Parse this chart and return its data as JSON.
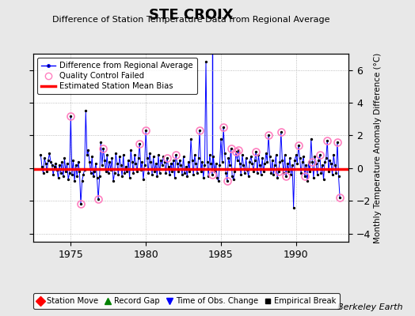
{
  "title": "STE CROIX",
  "subtitle": "Difference of Station Temperature Data from Regional Average",
  "ylabel": "Monthly Temperature Anomaly Difference (°C)",
  "background_color": "#e8e8e8",
  "plot_bg_color": "#ffffff",
  "xlim": [
    1972.5,
    1993.5
  ],
  "ylim": [
    -4.5,
    7.0
  ],
  "yticks": [
    -4,
    -2,
    0,
    2,
    4,
    6
  ],
  "xticks": [
    1975,
    1980,
    1985,
    1990
  ],
  "bias_value": -0.05,
  "time_of_obs_change_x": 1984.42,
  "berkeley_earth_text": "Berkeley Earth",
  "legend1_labels": [
    "Difference from Regional Average",
    "Quality Control Failed",
    "Estimated Station Mean Bias"
  ],
  "legend2_labels": [
    "Station Move",
    "Record Gap",
    "Time of Obs. Change",
    "Empirical Break"
  ],
  "monthly_data": [
    [
      1973.0,
      0.8
    ],
    [
      1973.083,
      0.1
    ],
    [
      1973.167,
      -0.3
    ],
    [
      1973.25,
      0.6
    ],
    [
      1973.333,
      0.3
    ],
    [
      1973.417,
      -0.2
    ],
    [
      1973.5,
      0.5
    ],
    [
      1973.583,
      0.9
    ],
    [
      1973.667,
      0.4
    ],
    [
      1973.75,
      0.2
    ],
    [
      1973.833,
      -0.4
    ],
    [
      1973.917,
      0.1
    ],
    [
      1974.0,
      0.3
    ],
    [
      1974.083,
      -0.1
    ],
    [
      1974.167,
      -0.6
    ],
    [
      1974.25,
      0.2
    ],
    [
      1974.333,
      -0.3
    ],
    [
      1974.417,
      0.4
    ],
    [
      1974.5,
      -0.5
    ],
    [
      1974.583,
      0.6
    ],
    [
      1974.667,
      -0.2
    ],
    [
      1974.75,
      0.3
    ],
    [
      1974.833,
      -0.7
    ],
    [
      1974.917,
      -0.3
    ],
    [
      1975.0,
      3.2
    ],
    [
      1975.083,
      -0.4
    ],
    [
      1975.167,
      0.5
    ],
    [
      1975.25,
      -0.8
    ],
    [
      1975.333,
      0.2
    ],
    [
      1975.417,
      -0.5
    ],
    [
      1975.5,
      0.4
    ],
    [
      1975.583,
      -0.2
    ],
    [
      1975.667,
      -2.2
    ],
    [
      1975.75,
      -0.8
    ],
    [
      1975.833,
      -0.4
    ],
    [
      1975.917,
      -0.1
    ],
    [
      1976.0,
      3.5
    ],
    [
      1976.083,
      0.8
    ],
    [
      1976.167,
      1.1
    ],
    [
      1976.25,
      0.4
    ],
    [
      1976.333,
      -0.3
    ],
    [
      1976.417,
      0.7
    ],
    [
      1976.5,
      -0.5
    ],
    [
      1976.583,
      -0.2
    ],
    [
      1976.667,
      0.3
    ],
    [
      1976.75,
      -0.6
    ],
    [
      1976.833,
      -1.9
    ],
    [
      1976.917,
      -0.5
    ],
    [
      1977.0,
      1.6
    ],
    [
      1977.083,
      0.2
    ],
    [
      1977.167,
      1.2
    ],
    [
      1977.25,
      0.5
    ],
    [
      1977.333,
      -0.2
    ],
    [
      1977.417,
      0.8
    ],
    [
      1977.5,
      -0.3
    ],
    [
      1977.583,
      0.4
    ],
    [
      1977.667,
      -0.1
    ],
    [
      1977.75,
      0.6
    ],
    [
      1977.833,
      -0.8
    ],
    [
      1977.917,
      -0.3
    ],
    [
      1978.0,
      0.9
    ],
    [
      1978.083,
      0.3
    ],
    [
      1978.167,
      -0.4
    ],
    [
      1978.25,
      0.7
    ],
    [
      1978.333,
      0.2
    ],
    [
      1978.417,
      -0.5
    ],
    [
      1978.5,
      0.8
    ],
    [
      1978.583,
      -0.3
    ],
    [
      1978.667,
      0.1
    ],
    [
      1978.75,
      -0.2
    ],
    [
      1978.833,
      0.5
    ],
    [
      1978.917,
      -0.6
    ],
    [
      1979.0,
      1.1
    ],
    [
      1979.083,
      0.4
    ],
    [
      1979.167,
      -0.3
    ],
    [
      1979.25,
      0.8
    ],
    [
      1979.333,
      0.3
    ],
    [
      1979.417,
      -0.2
    ],
    [
      1979.5,
      0.6
    ],
    [
      1979.583,
      1.5
    ],
    [
      1979.667,
      -0.1
    ],
    [
      1979.75,
      0.4
    ],
    [
      1979.833,
      -0.7
    ],
    [
      1979.917,
      0.2
    ],
    [
      1980.0,
      2.3
    ],
    [
      1980.083,
      0.6
    ],
    [
      1980.167,
      -0.3
    ],
    [
      1980.25,
      0.9
    ],
    [
      1980.333,
      0.4
    ],
    [
      1980.417,
      -0.4
    ],
    [
      1980.5,
      0.7
    ],
    [
      1980.583,
      -0.2
    ],
    [
      1980.667,
      0.3
    ],
    [
      1980.75,
      -0.5
    ],
    [
      1980.833,
      0.8
    ],
    [
      1980.917,
      -0.3
    ],
    [
      1981.0,
      0.5
    ],
    [
      1981.083,
      0.2
    ],
    [
      1981.167,
      0.7
    ],
    [
      1981.25,
      0.4
    ],
    [
      1981.333,
      -0.3
    ],
    [
      1981.417,
      0.6
    ],
    [
      1981.5,
      0.1
    ],
    [
      1981.583,
      -0.4
    ],
    [
      1981.667,
      0.3
    ],
    [
      1981.75,
      -0.2
    ],
    [
      1981.833,
      0.5
    ],
    [
      1981.917,
      -0.6
    ],
    [
      1982.0,
      0.8
    ],
    [
      1982.083,
      0.3
    ],
    [
      1982.167,
      -0.2
    ],
    [
      1982.25,
      0.5
    ],
    [
      1982.333,
      0.2
    ],
    [
      1982.417,
      -0.4
    ],
    [
      1982.5,
      0.7
    ],
    [
      1982.583,
      -0.3
    ],
    [
      1982.667,
      0.1
    ],
    [
      1982.75,
      -0.5
    ],
    [
      1982.833,
      0.4
    ],
    [
      1982.917,
      -0.2
    ],
    [
      1983.0,
      1.8
    ],
    [
      1983.083,
      0.5
    ],
    [
      1983.167,
      -0.4
    ],
    [
      1983.25,
      0.8
    ],
    [
      1983.333,
      0.3
    ],
    [
      1983.417,
      -0.3
    ],
    [
      1983.5,
      0.6
    ],
    [
      1983.583,
      2.3
    ],
    [
      1983.667,
      -0.2
    ],
    [
      1983.75,
      0.4
    ],
    [
      1983.833,
      -0.6
    ],
    [
      1983.917,
      0.2
    ],
    [
      1984.0,
      6.5
    ],
    [
      1984.083,
      0.4
    ],
    [
      1984.167,
      -0.5
    ],
    [
      1984.25,
      0.8
    ],
    [
      1984.333,
      0.3
    ],
    [
      1984.417,
      -0.4
    ],
    [
      1984.5,
      0.7
    ],
    [
      1984.583,
      -0.2
    ],
    [
      1984.667,
      0.3
    ],
    [
      1984.75,
      -0.6
    ],
    [
      1984.833,
      -0.8
    ],
    [
      1984.917,
      0.2
    ],
    [
      1985.0,
      1.8
    ],
    [
      1985.083,
      0.4
    ],
    [
      1985.167,
      2.5
    ],
    [
      1985.25,
      0.9
    ],
    [
      1985.333,
      -0.3
    ],
    [
      1985.417,
      -0.8
    ],
    [
      1985.5,
      0.6
    ],
    [
      1985.583,
      0.2
    ],
    [
      1985.667,
      1.2
    ],
    [
      1985.75,
      -0.5
    ],
    [
      1985.833,
      -0.7
    ],
    [
      1985.917,
      -0.2
    ],
    [
      1986.0,
      1.0
    ],
    [
      1986.083,
      0.5
    ],
    [
      1986.167,
      1.1
    ],
    [
      1986.25,
      0.3
    ],
    [
      1986.333,
      -0.4
    ],
    [
      1986.417,
      0.8
    ],
    [
      1986.5,
      0.2
    ],
    [
      1986.583,
      -0.3
    ],
    [
      1986.667,
      0.6
    ],
    [
      1986.75,
      -0.1
    ],
    [
      1986.833,
      -0.5
    ],
    [
      1986.917,
      0.4
    ],
    [
      1987.0,
      0.7
    ],
    [
      1987.083,
      0.3
    ],
    [
      1987.167,
      -0.2
    ],
    [
      1987.25,
      0.5
    ],
    [
      1987.333,
      1.0
    ],
    [
      1987.417,
      -0.3
    ],
    [
      1987.5,
      0.8
    ],
    [
      1987.583,
      0.2
    ],
    [
      1987.667,
      -0.4
    ],
    [
      1987.75,
      0.6
    ],
    [
      1987.833,
      -0.2
    ],
    [
      1987.917,
      0.3
    ],
    [
      1988.0,
      0.9
    ],
    [
      1988.083,
      0.4
    ],
    [
      1988.167,
      2.0
    ],
    [
      1988.25,
      0.7
    ],
    [
      1988.333,
      -0.3
    ],
    [
      1988.417,
      0.5
    ],
    [
      1988.5,
      -0.4
    ],
    [
      1988.583,
      0.2
    ],
    [
      1988.667,
      0.8
    ],
    [
      1988.75,
      -0.6
    ],
    [
      1988.833,
      -0.2
    ],
    [
      1988.917,
      0.4
    ],
    [
      1989.0,
      2.2
    ],
    [
      1989.083,
      0.5
    ],
    [
      1989.167,
      -0.3
    ],
    [
      1989.25,
      0.8
    ],
    [
      1989.333,
      -0.5
    ],
    [
      1989.417,
      0.3
    ],
    [
      1989.5,
      -0.2
    ],
    [
      1989.583,
      0.6
    ],
    [
      1989.667,
      -0.4
    ],
    [
      1989.75,
      0.2
    ],
    [
      1989.833,
      -2.4
    ],
    [
      1989.917,
      0.5
    ],
    [
      1990.0,
      0.8
    ],
    [
      1990.083,
      0.3
    ],
    [
      1990.167,
      1.4
    ],
    [
      1990.25,
      0.6
    ],
    [
      1990.333,
      -0.3
    ],
    [
      1990.417,
      0.4
    ],
    [
      1990.5,
      0.7
    ],
    [
      1990.583,
      -0.5
    ],
    [
      1990.667,
      0.2
    ],
    [
      1990.75,
      -0.8
    ],
    [
      1990.833,
      0.4
    ],
    [
      1990.917,
      -0.2
    ],
    [
      1991.0,
      1.8
    ],
    [
      1991.083,
      0.4
    ],
    [
      1991.167,
      -0.6
    ],
    [
      1991.25,
      0.7
    ],
    [
      1991.333,
      0.3
    ],
    [
      1991.417,
      -0.4
    ],
    [
      1991.5,
      0.5
    ],
    [
      1991.583,
      0.8
    ],
    [
      1991.667,
      -0.3
    ],
    [
      1991.75,
      0.2
    ],
    [
      1991.833,
      -0.7
    ],
    [
      1991.917,
      0.4
    ],
    [
      1992.0,
      0.6
    ],
    [
      1992.083,
      1.7
    ],
    [
      1992.167,
      -0.2
    ],
    [
      1992.25,
      0.5
    ],
    [
      1992.333,
      0.3
    ],
    [
      1992.417,
      -0.4
    ],
    [
      1992.5,
      0.8
    ],
    [
      1992.583,
      0.2
    ],
    [
      1992.667,
      -0.3
    ],
    [
      1992.75,
      1.6
    ],
    [
      1992.833,
      -0.5
    ],
    [
      1992.917,
      -1.8
    ]
  ],
  "qc_failed_points": [
    [
      1975.0,
      3.2
    ],
    [
      1975.667,
      -2.2
    ],
    [
      1976.833,
      -1.9
    ],
    [
      1977.167,
      1.2
    ],
    [
      1979.583,
      1.5
    ],
    [
      1980.0,
      2.3
    ],
    [
      1981.417,
      0.6
    ],
    [
      1982.0,
      0.8
    ],
    [
      1983.583,
      2.3
    ],
    [
      1984.417,
      -0.4
    ],
    [
      1985.167,
      2.5
    ],
    [
      1985.417,
      -0.8
    ],
    [
      1985.667,
      1.2
    ],
    [
      1986.0,
      1.0
    ],
    [
      1986.167,
      1.1
    ],
    [
      1987.333,
      1.0
    ],
    [
      1988.167,
      2.0
    ],
    [
      1988.833,
      -0.2
    ],
    [
      1989.0,
      2.2
    ],
    [
      1989.333,
      -0.5
    ],
    [
      1990.167,
      1.4
    ],
    [
      1990.583,
      -0.5
    ],
    [
      1991.083,
      0.4
    ],
    [
      1991.583,
      0.8
    ],
    [
      1992.083,
      1.7
    ],
    [
      1992.75,
      1.6
    ],
    [
      1992.917,
      -1.8
    ]
  ]
}
